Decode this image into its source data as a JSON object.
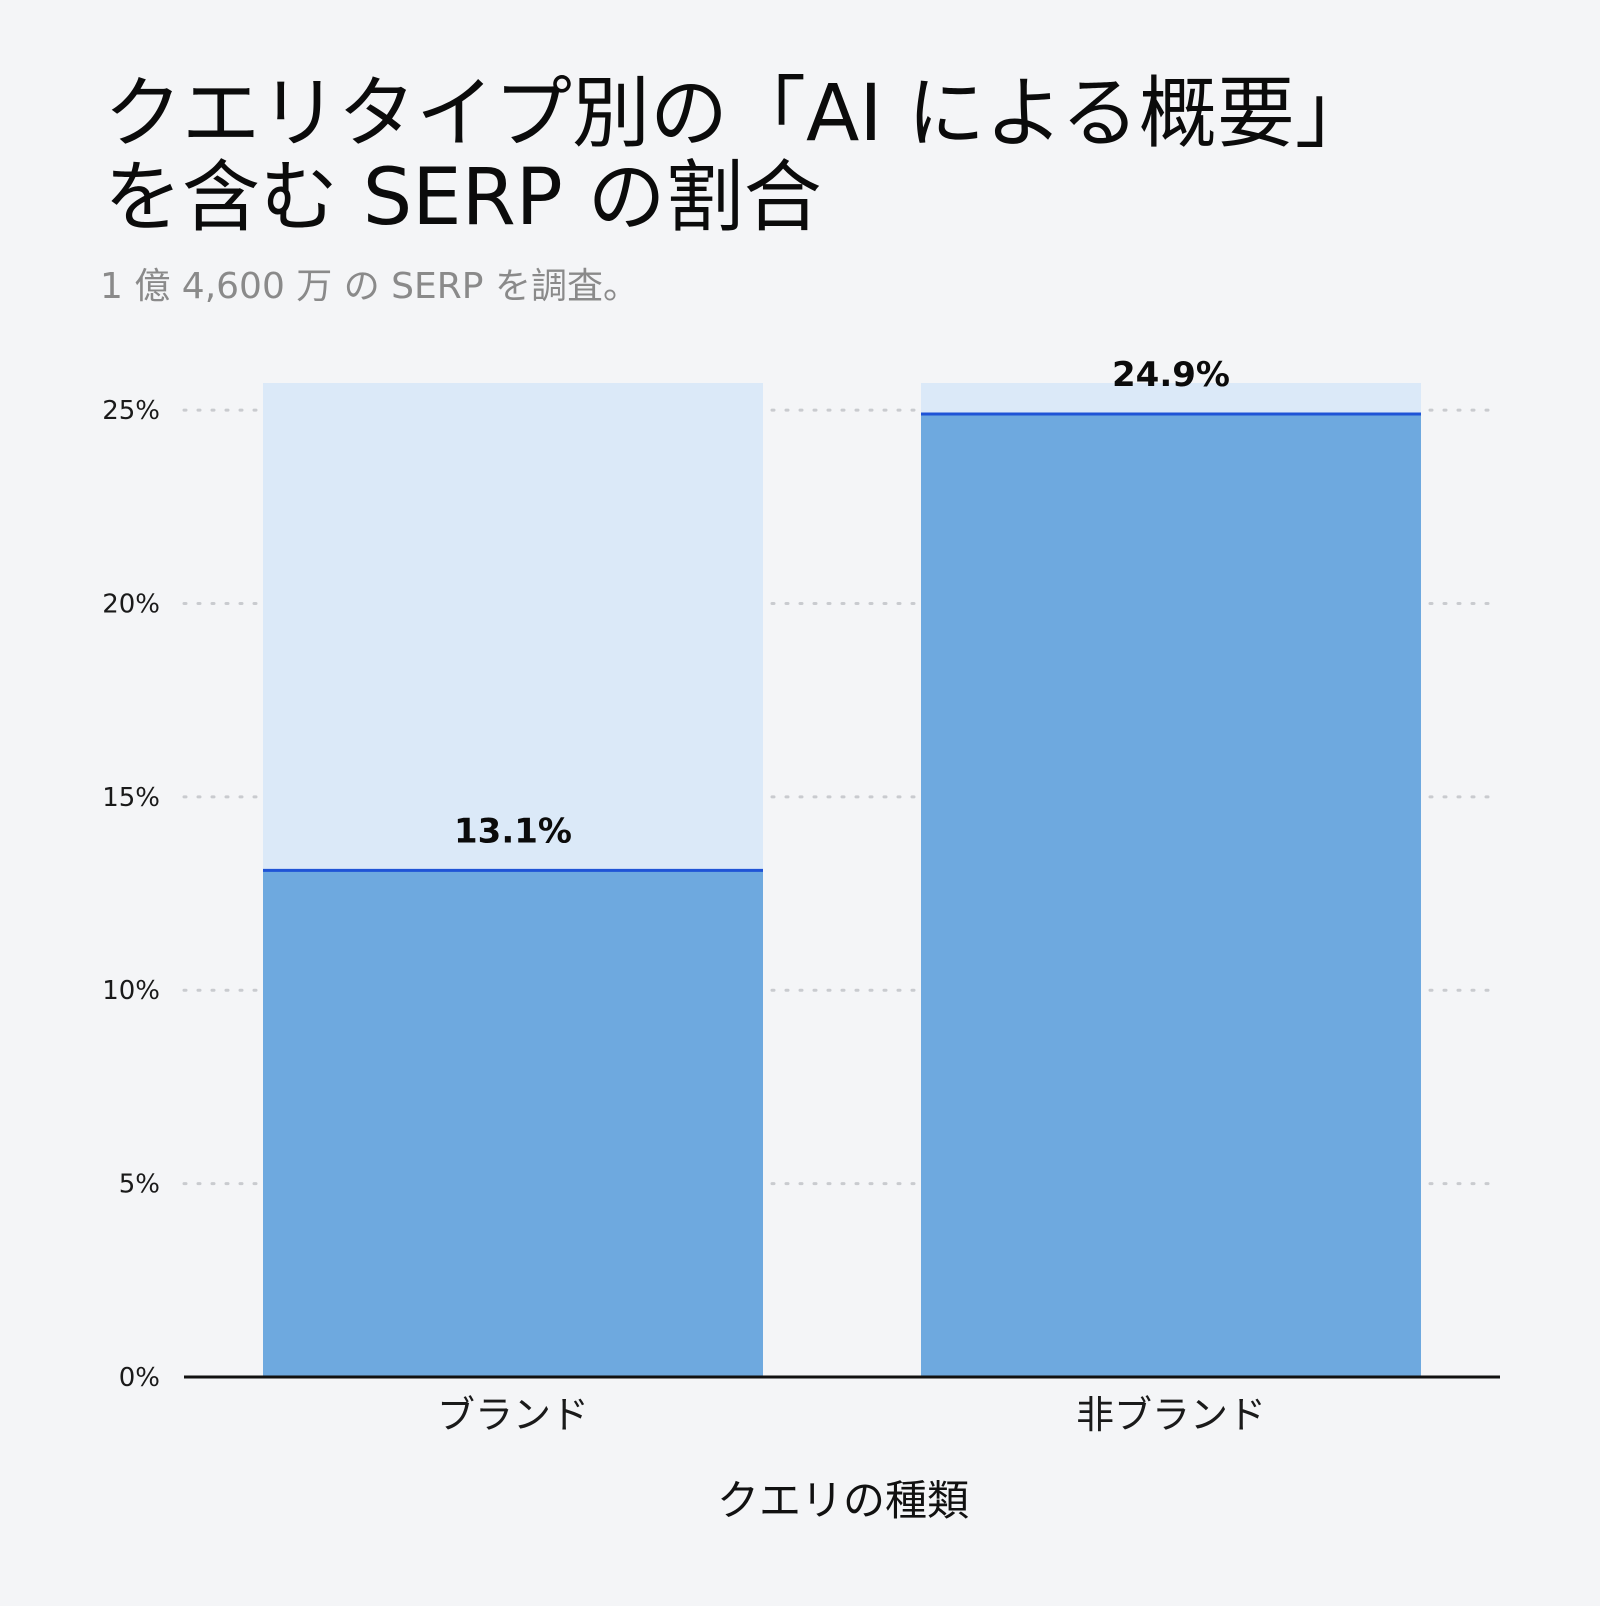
{
  "title_line1": "クエリタイプ別の「AI による概要」",
  "title_line2": "を含む SERP の割合",
  "subtitle": "1 億 4,600 万 の SERP を調査。",
  "colors": {
    "bar_fill": "#6ea9df",
    "bar_background": "#dbe9f8",
    "value_line": "#1f54d6",
    "grid": "#c9cbcf",
    "axis": "#111111",
    "background": "#f4f5f7"
  },
  "chart_data": {
    "type": "bar",
    "categories": [
      "ブランド",
      "非ブランド"
    ],
    "values": [
      13.1,
      24.9
    ],
    "value_labels": [
      "13.1%",
      "24.9%"
    ],
    "xlabel": "クエリの種類",
    "ylabel": "",
    "ylim": [
      0,
      25.7
    ],
    "yticks": [
      0,
      5,
      10,
      15,
      20,
      25
    ],
    "ytick_labels": [
      "0%",
      "5%",
      "10%",
      "15%",
      "20%",
      "25%"
    ],
    "grid": true,
    "legend": "none"
  }
}
